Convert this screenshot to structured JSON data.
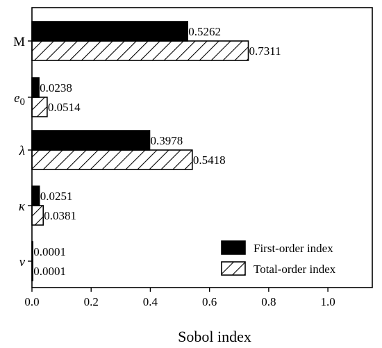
{
  "chart_data": {
    "type": "bar",
    "orientation": "horizontal",
    "categories": [
      {
        "label": "M",
        "italic": false
      },
      {
        "label": "e0",
        "italic": true,
        "base": "e",
        "sub": "0"
      },
      {
        "label": "λ",
        "italic": true
      },
      {
        "label": "κ",
        "italic": true
      },
      {
        "label": "ν",
        "italic": true
      }
    ],
    "series": [
      {
        "name": "First-order index",
        "fill": "solid",
        "color": "#000000",
        "values": [
          0.5262,
          0.0238,
          0.3978,
          0.0251,
          0.0001
        ],
        "labels": [
          "0.5262",
          "0.0238",
          "0.3978",
          "0.0251",
          "0.0001"
        ]
      },
      {
        "name": "Total-order index",
        "fill": "hatch",
        "color": "#000000",
        "values": [
          0.7311,
          0.0514,
          0.5418,
          0.0381,
          0.0001
        ],
        "labels": [
          "0.7311",
          "0.0514",
          "0.5418",
          "0.0381",
          "0.0001"
        ]
      }
    ],
    "xlabel": "Sobol index",
    "xlim": [
      0,
      1.15
    ],
    "xticks": [
      0.0,
      0.2,
      0.4,
      0.6,
      0.8,
      1.0
    ],
    "xtick_labels": [
      "0.0",
      "0.2",
      "0.4",
      "0.6",
      "0.8",
      "1.0"
    ],
    "grid": false,
    "legend_position": "bottom-right"
  }
}
